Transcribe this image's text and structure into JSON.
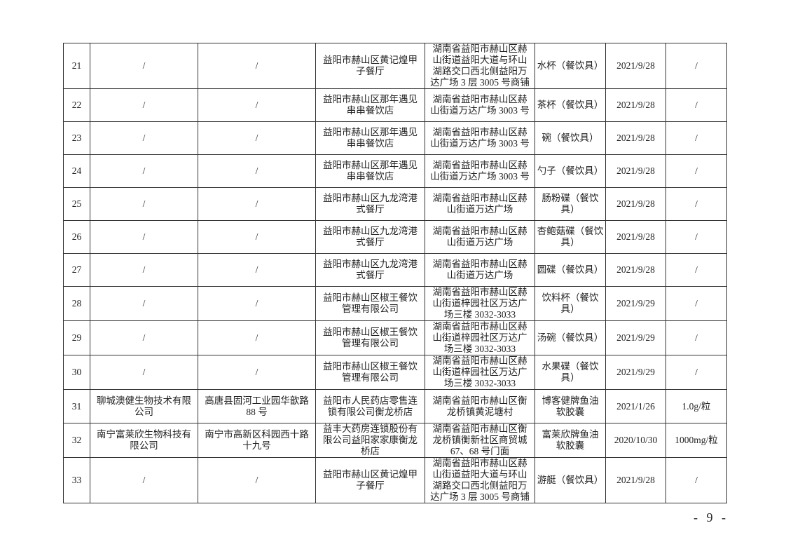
{
  "rows": [
    {
      "no": "21",
      "manufacturer": "/",
      "manufacturer_address": "/",
      "sampled_unit": "益阳市赫山区黄记煌甲\n子餐厅",
      "unit_address": "湖南省益阳市赫山区赫\n山街道益阳大道与环山\n湖路交口西北侧益阳万\n达广场 3 层 3005 号商铺",
      "product": "水杯（餐饮具）",
      "date": "2021/9/28",
      "spec": "/"
    },
    {
      "no": "22",
      "manufacturer": "/",
      "manufacturer_address": "/",
      "sampled_unit": "益阳市赫山区那年遇见\n串串餐饮店",
      "unit_address": "湖南省益阳市赫山区赫\n山街道万达广场 3003 号",
      "product": "茶杯（餐饮具）",
      "date": "2021/9/28",
      "spec": "/"
    },
    {
      "no": "23",
      "manufacturer": "/",
      "manufacturer_address": "/",
      "sampled_unit": "益阳市赫山区那年遇见\n串串餐饮店",
      "unit_address": "湖南省益阳市赫山区赫\n山街道万达广场 3003 号",
      "product": "碗（餐饮具）",
      "date": "2021/9/28",
      "spec": "/"
    },
    {
      "no": "24",
      "manufacturer": "/",
      "manufacturer_address": "/",
      "sampled_unit": "益阳市赫山区那年遇见\n串串餐饮店",
      "unit_address": "湖南省益阳市赫山区赫\n山街道万达广场 3003 号",
      "product": "勺子（餐饮具）",
      "date": "2021/9/28",
      "spec": "/"
    },
    {
      "no": "25",
      "manufacturer": "/",
      "manufacturer_address": "/",
      "sampled_unit": "益阳市赫山区九龙湾港\n式餐厅",
      "unit_address": "湖南省益阳市赫山区赫\n山街道万达广场",
      "product": "肠粉碟（餐饮\n具）",
      "date": "2021/9/28",
      "spec": "/"
    },
    {
      "no": "26",
      "manufacturer": "/",
      "manufacturer_address": "/",
      "sampled_unit": "益阳市赫山区九龙湾港\n式餐厅",
      "unit_address": "湖南省益阳市赫山区赫\n山街道万达广场",
      "product": "杏鲍菇碟（餐饮\n具）",
      "date": "2021/9/28",
      "spec": "/"
    },
    {
      "no": "27",
      "manufacturer": "/",
      "manufacturer_address": "/",
      "sampled_unit": "益阳市赫山区九龙湾港\n式餐厅",
      "unit_address": "湖南省益阳市赫山区赫\n山街道万达广场",
      "product": "圆碟（餐饮具）",
      "date": "2021/9/28",
      "spec": "/"
    },
    {
      "no": "28",
      "manufacturer": "/",
      "manufacturer_address": "/",
      "sampled_unit": "益阳市赫山区椒王餐饮\n管理有限公司",
      "unit_address": "湖南省益阳市赫山区赫\n山街道梓园社区万达广\n场三楼 3032-3033",
      "product": "饮料杯（餐饮\n具）",
      "date": "2021/9/29",
      "spec": "/"
    },
    {
      "no": "29",
      "manufacturer": "/",
      "manufacturer_address": "/",
      "sampled_unit": "益阳市赫山区椒王餐饮\n管理有限公司",
      "unit_address": "湖南省益阳市赫山区赫\n山街道梓园社区万达广\n场三楼 3032-3033",
      "product": "汤碗（餐饮具）",
      "date": "2021/9/29",
      "spec": "/"
    },
    {
      "no": "30",
      "manufacturer": "/",
      "manufacturer_address": "/",
      "sampled_unit": "益阳市赫山区椒王餐饮\n管理有限公司",
      "unit_address": "湖南省益阳市赫山区赫\n山街道梓园社区万达广\n场三楼 3032-3033",
      "product": "水果碟（餐饮\n具）",
      "date": "2021/9/29",
      "spec": "/"
    },
    {
      "no": "31",
      "manufacturer": "聊城澳健生物技术有限\n公司",
      "manufacturer_address": "高唐县固河工业园华歆路\n88 号",
      "sampled_unit": "益阳市人民药店零售连\n锁有限公司衡龙桥店",
      "unit_address": "湖南省益阳市赫山区衡\n龙桥镇黄泥塘村",
      "product": "博客健牌鱼油\n软胶囊",
      "date": "2021/1/26",
      "spec": "1.0g/粒"
    },
    {
      "no": "32",
      "manufacturer": "南宁富莱欣生物科技有\n限公司",
      "manufacturer_address": "南宁市高新区科园西十路\n十九号",
      "sampled_unit": "益丰大药房连锁股份有\n限公司益阳家家康衡龙\n桥店",
      "unit_address": "湖南省益阳市赫山区衡\n龙桥镇衡新社区商贸城\n67、68 号门面",
      "product": "富莱欣牌鱼油\n软胶囊",
      "date": "2020/10/30",
      "spec": "1000mg/粒"
    },
    {
      "no": "33",
      "manufacturer": "/",
      "manufacturer_address": "/",
      "sampled_unit": "益阳市赫山区黄记煌甲\n子餐厅",
      "unit_address": "湖南省益阳市赫山区赫\n山街道益阳大道与环山\n湖路交口西北侧益阳万\n达广场 3 层 3005 号商铺",
      "product": "游艇（餐饮具）",
      "date": "2021/9/28",
      "spec": "/"
    }
  ],
  "page_number": "- 9 -"
}
